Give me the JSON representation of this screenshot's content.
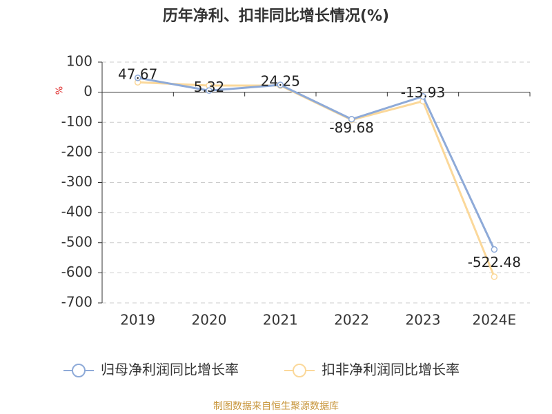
{
  "chart_data": {
    "type": "line",
    "title": "历年净利、扣非同比增长情况(%)",
    "y_label": "%",
    "categories": [
      "2019",
      "2020",
      "2021",
      "2022",
      "2023",
      "2024E"
    ],
    "series": [
      {
        "name": "归母净利润同比增长率",
        "color": "#8eaad8",
        "values": [
          47.67,
          5.32,
          24.25,
          -89.68,
          -13.93,
          -522.48
        ]
      },
      {
        "name": "扣非净利润同比增长率",
        "color": "#fbd89a",
        "values": [
          33,
          22,
          22,
          -92,
          -30,
          -613
        ]
      }
    ],
    "ylim": [
      -700,
      100
    ],
    "yticks": [
      -700,
      -600,
      -500,
      -400,
      -300,
      -200,
      -100,
      0,
      100
    ],
    "grid": true,
    "source": "制图数据来自恒生聚源数据库"
  }
}
